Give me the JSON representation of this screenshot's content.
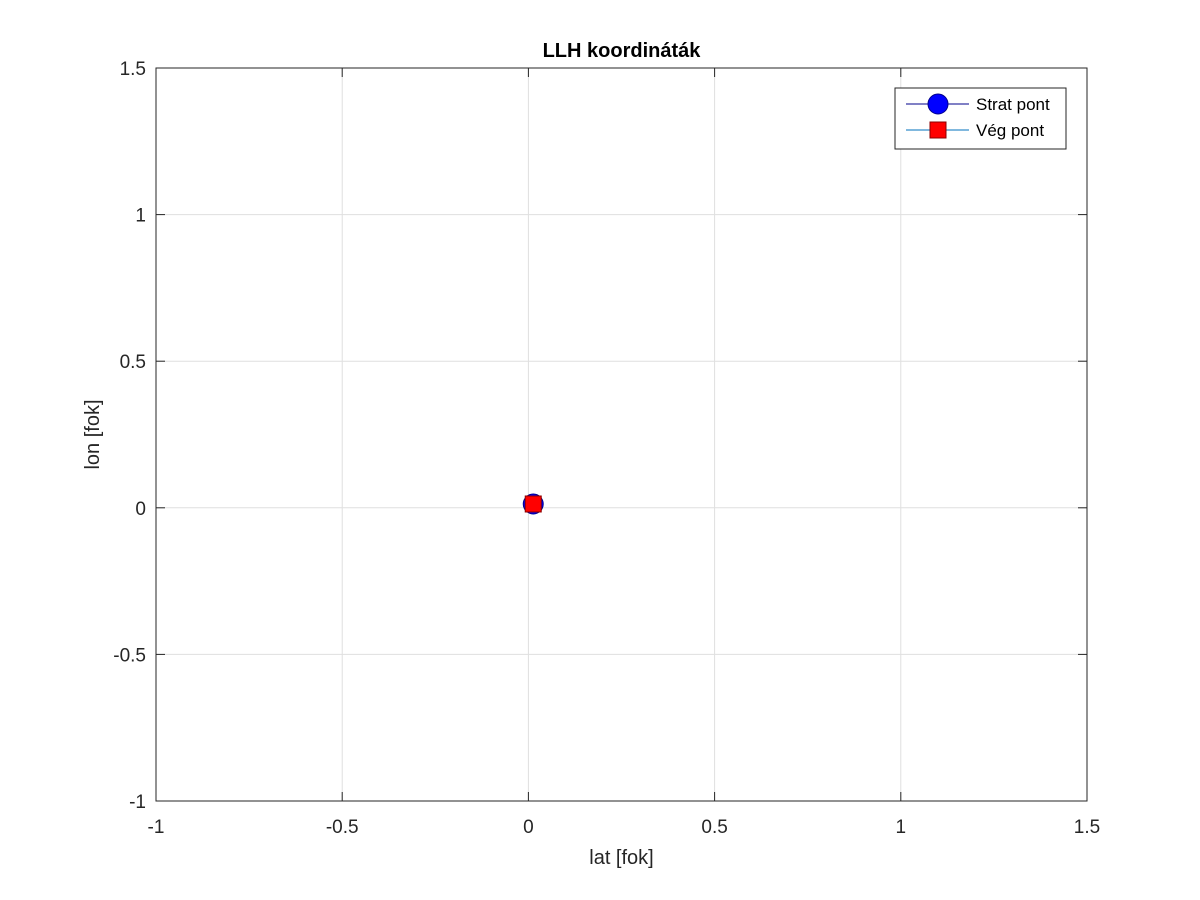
{
  "chart_data": {
    "type": "scatter",
    "title": "LLH koordináták",
    "xlabel": "lat [fok]",
    "ylabel": "lon [fok]",
    "xlim": [
      -1,
      1.5
    ],
    "ylim": [
      -1,
      1.5
    ],
    "xticks": [
      -1,
      -0.5,
      0,
      0.5,
      1,
      1.5
    ],
    "yticks": [
      -1,
      -0.5,
      0,
      0.5,
      1,
      1.5
    ],
    "xtick_labels": [
      "-1",
      "-0.5",
      "0",
      "0.5",
      "1",
      "1.5"
    ],
    "ytick_labels": [
      "-1",
      "-0.5",
      "0",
      "0.5",
      "1",
      "1.5"
    ],
    "grid": true,
    "legend_position": "top-right",
    "series": [
      {
        "name": "Strat pont",
        "marker": "circle",
        "color": "#0000ff",
        "line_color": "#00008b",
        "x": [
          0.013
        ],
        "y": [
          0.013
        ]
      },
      {
        "name": "Vég pont",
        "marker": "square",
        "color": "#ff0000",
        "line_color": "#0072bd",
        "x": [
          0.013
        ],
        "y": [
          0.013
        ]
      }
    ]
  }
}
